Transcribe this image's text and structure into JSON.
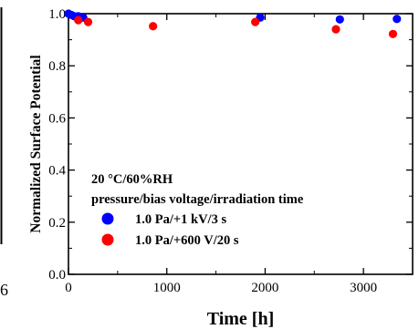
{
  "chart_data": {
    "type": "scatter",
    "xlabel": "Time [h]",
    "ylabel": "Normalized Surface Potential",
    "xlim": [
      0,
      3500
    ],
    "ylim": [
      0,
      1.0
    ],
    "x_ticks": [
      "0",
      "1000",
      "2000",
      "3000"
    ],
    "y_ticks": [
      "0.0",
      "0.2",
      "0.4",
      "0.6",
      "0.8",
      "1.0"
    ],
    "grid": false,
    "legend_placement": "bottom-left",
    "legend_header": [
      "20 °C/60%RH",
      "pressure/bias voltage/irradiation time"
    ],
    "series": [
      {
        "name": "1.0 Pa/+1 kV/3 s",
        "color": "#0000ff",
        "x": [
          0,
          30,
          60,
          100,
          150,
          1950,
          2760,
          3340
        ],
        "y": [
          1.0,
          0.995,
          0.99,
          0.99,
          0.985,
          0.985,
          0.978,
          0.98
        ]
      },
      {
        "name": "1.0 Pa/+600 V/20 s",
        "color": "#ff0000",
        "x": [
          100,
          200,
          860,
          1900,
          2720,
          3300
        ],
        "y": [
          0.975,
          0.968,
          0.952,
          0.968,
          0.94,
          0.922
        ]
      }
    ]
  },
  "edge_text": {
    "left_fragment": "6"
  }
}
